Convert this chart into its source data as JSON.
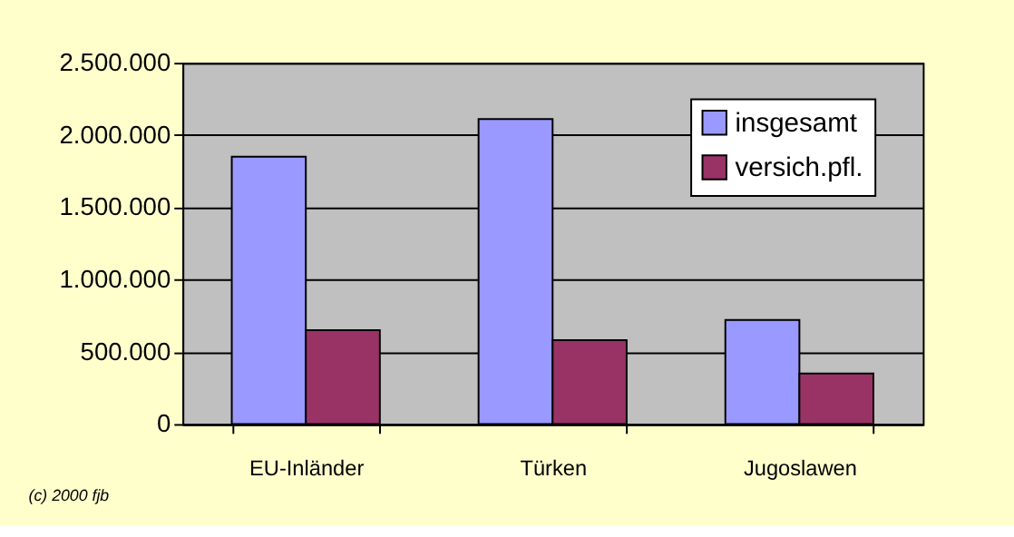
{
  "chart_data": {
    "type": "bar",
    "categories": [
      "EU-Inländer",
      "Türken",
      "Jugoslawen"
    ],
    "series": [
      {
        "name": "insgesamt",
        "color": "#9999ff",
        "values": [
          1850000,
          2110000,
          720000
        ]
      },
      {
        "name": "versich.pfl.",
        "color": "#993366",
        "values": [
          650000,
          580000,
          350000
        ]
      }
    ],
    "ylim": [
      0,
      2500000
    ],
    "yticks": [
      {
        "value": 0,
        "label": "0"
      },
      {
        "value": 500000,
        "label": "500.000"
      },
      {
        "value": 1000000,
        "label": "1.000.000"
      },
      {
        "value": 1500000,
        "label": "1.500.000"
      },
      {
        "value": 2000000,
        "label": "2.000.000"
      },
      {
        "value": 2500000,
        "label": "2.500.000"
      }
    ],
    "grid": "y",
    "legend": "top right",
    "annotations": [
      "(c) 2000 fjb"
    ]
  }
}
